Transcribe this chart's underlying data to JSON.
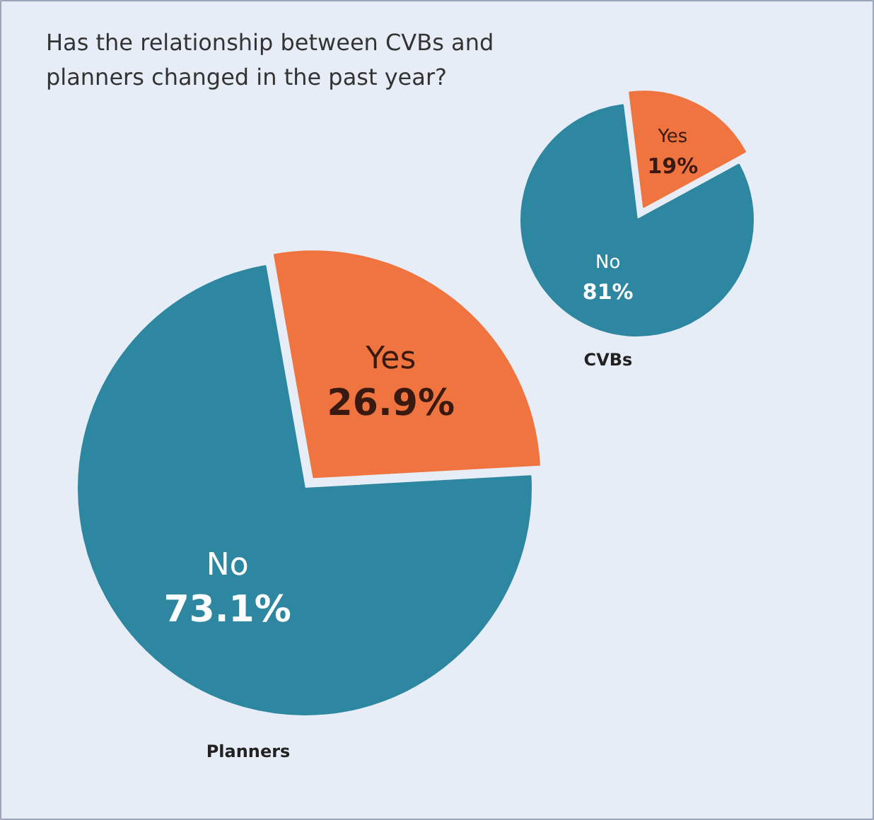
{
  "chart_data": [
    {
      "type": "pie",
      "title": "Has the relationship between CVBs and planners changed in the past year?",
      "xlabel": "CVBs",
      "categories": [
        "Yes",
        "No"
      ],
      "values": [
        19,
        81
      ],
      "value_labels": [
        "19%",
        "81%"
      ],
      "colors": [
        "#ef7440",
        "#2e87a0"
      ]
    },
    {
      "type": "pie",
      "xlabel": "Planners",
      "categories": [
        "Yes",
        "No"
      ],
      "values": [
        26.9,
        73.1
      ],
      "value_labels": [
        "26.9%",
        "73.1%"
      ],
      "colors": [
        "#ef7440",
        "#2e87a0"
      ]
    }
  ]
}
